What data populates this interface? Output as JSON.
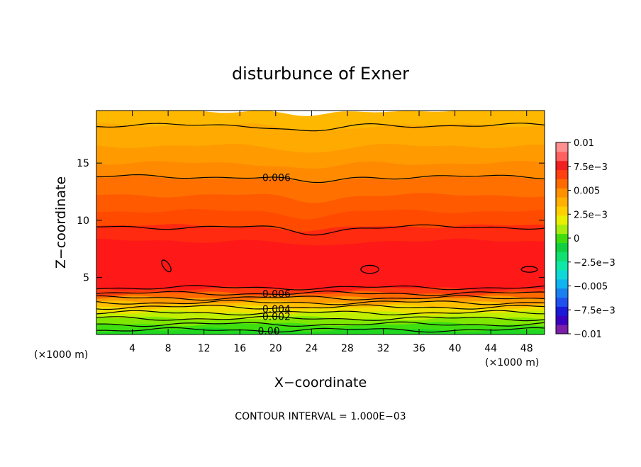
{
  "chart_data": {
    "type": "heatmap",
    "title": "disturbunce of Exner",
    "xlabel": "X−coordinate",
    "ylabel": "Z−coordinate",
    "x_unit_left": "(×1000 m)",
    "x_unit_right": "(×1000 m)",
    "xlim": [
      0,
      50
    ],
    "ylim": [
      0,
      19.6
    ],
    "x_ticks": [
      4,
      8,
      12,
      16,
      20,
      24,
      28,
      32,
      36,
      40,
      44,
      48
    ],
    "y_ticks": [
      5,
      10,
      15
    ],
    "footer": "CONTOUR INTERVAL = 1.000E−03",
    "colorbar": {
      "min": -0.01,
      "max": 0.01,
      "labels": [
        {
          "value": 0.01,
          "text": "0.01"
        },
        {
          "value": 0.0075,
          "text": "7.5e−3"
        },
        {
          "value": 0.005,
          "text": "0.005"
        },
        {
          "value": 0.0025,
          "text": "2.5e−3"
        },
        {
          "value": 0,
          "text": "0"
        },
        {
          "value": -0.0025,
          "text": "−2.5e−3"
        },
        {
          "value": -0.005,
          "text": "−0.005"
        },
        {
          "value": -0.0075,
          "text": "−7.5e−3"
        },
        {
          "value": -0.01,
          "text": "−0.01"
        }
      ],
      "colors": [
        "#7a1fa8",
        "#3a00c0",
        "#1a1ad8",
        "#2050ee",
        "#1a80f0",
        "#10b4f0",
        "#10d8d8",
        "#10e8a8",
        "#10e070",
        "#10d040",
        "#40dc10",
        "#a8ec10",
        "#e8f000",
        "#ffd000",
        "#ffb000",
        "#ff9000",
        "#ff6a00",
        "#ff4010",
        "#f02020",
        "#ff6060",
        "#ff9090"
      ]
    },
    "bands": [
      {
        "z_top": 19.6,
        "color": "#ffb800"
      },
      {
        "z_top": 18.3,
        "color": "#ffaa00"
      },
      {
        "z_top": 16.5,
        "color": "#ff9a00"
      },
      {
        "z_top": 15.0,
        "color": "#ff8a00"
      },
      {
        "z_top": 13.7,
        "color": "#ff7000"
      },
      {
        "z_top": 12.2,
        "color": "#ff5a00"
      },
      {
        "z_top": 10.8,
        "color": "#ff4a00"
      },
      {
        "z_top": 9.5,
        "color": "#ff2a10"
      },
      {
        "z_top": 8.2,
        "color": "#ff1818"
      },
      {
        "z_top": 4.0,
        "color": "#ff3a10"
      },
      {
        "z_top": 3.6,
        "color": "#ff6a00"
      },
      {
        "z_top": 3.2,
        "color": "#ff9a00"
      },
      {
        "z_top": 2.8,
        "color": "#ffc000"
      },
      {
        "z_top": 2.4,
        "color": "#f0e000"
      },
      {
        "z_top": 1.9,
        "color": "#c0f000"
      },
      {
        "z_top": 1.4,
        "color": "#80e800"
      },
      {
        "z_top": 0.9,
        "color": "#40e010"
      },
      {
        "z_top": 0.4,
        "color": "#20d820"
      }
    ],
    "contours": [
      {
        "z": 18.3,
        "label": ""
      },
      {
        "z": 13.8,
        "label": "0.006",
        "label_x": 18.5
      },
      {
        "z": 9.4,
        "label": ""
      },
      {
        "z": 4.1,
        "label": ""
      },
      {
        "z": 3.6,
        "label": "0.006",
        "label_x": 18.5
      },
      {
        "z": 3.2,
        "label": ""
      },
      {
        "z": 2.8,
        "label": ""
      },
      {
        "z": 2.4,
        "label": "0.004",
        "label_x": 18.5
      },
      {
        "z": 1.9,
        "label": ""
      },
      {
        "z": 1.4,
        "label": "0.002",
        "label_x": 18.5
      },
      {
        "z": 0.9,
        "label": ""
      },
      {
        "z": 0.4,
        "label": "0.00",
        "label_x": 18.0
      }
    ],
    "closed_contours": [
      {
        "x": 7.8,
        "z": 6.0,
        "rx": 0.35,
        "rz": 0.6,
        "rotate": -35
      },
      {
        "x": 30.5,
        "z": 5.7,
        "rx": 1.0,
        "rz": 0.35,
        "rotate": 0
      },
      {
        "x": 48.3,
        "z": 5.7,
        "rx": 0.9,
        "rz": 0.25,
        "rotate": 0
      }
    ]
  }
}
